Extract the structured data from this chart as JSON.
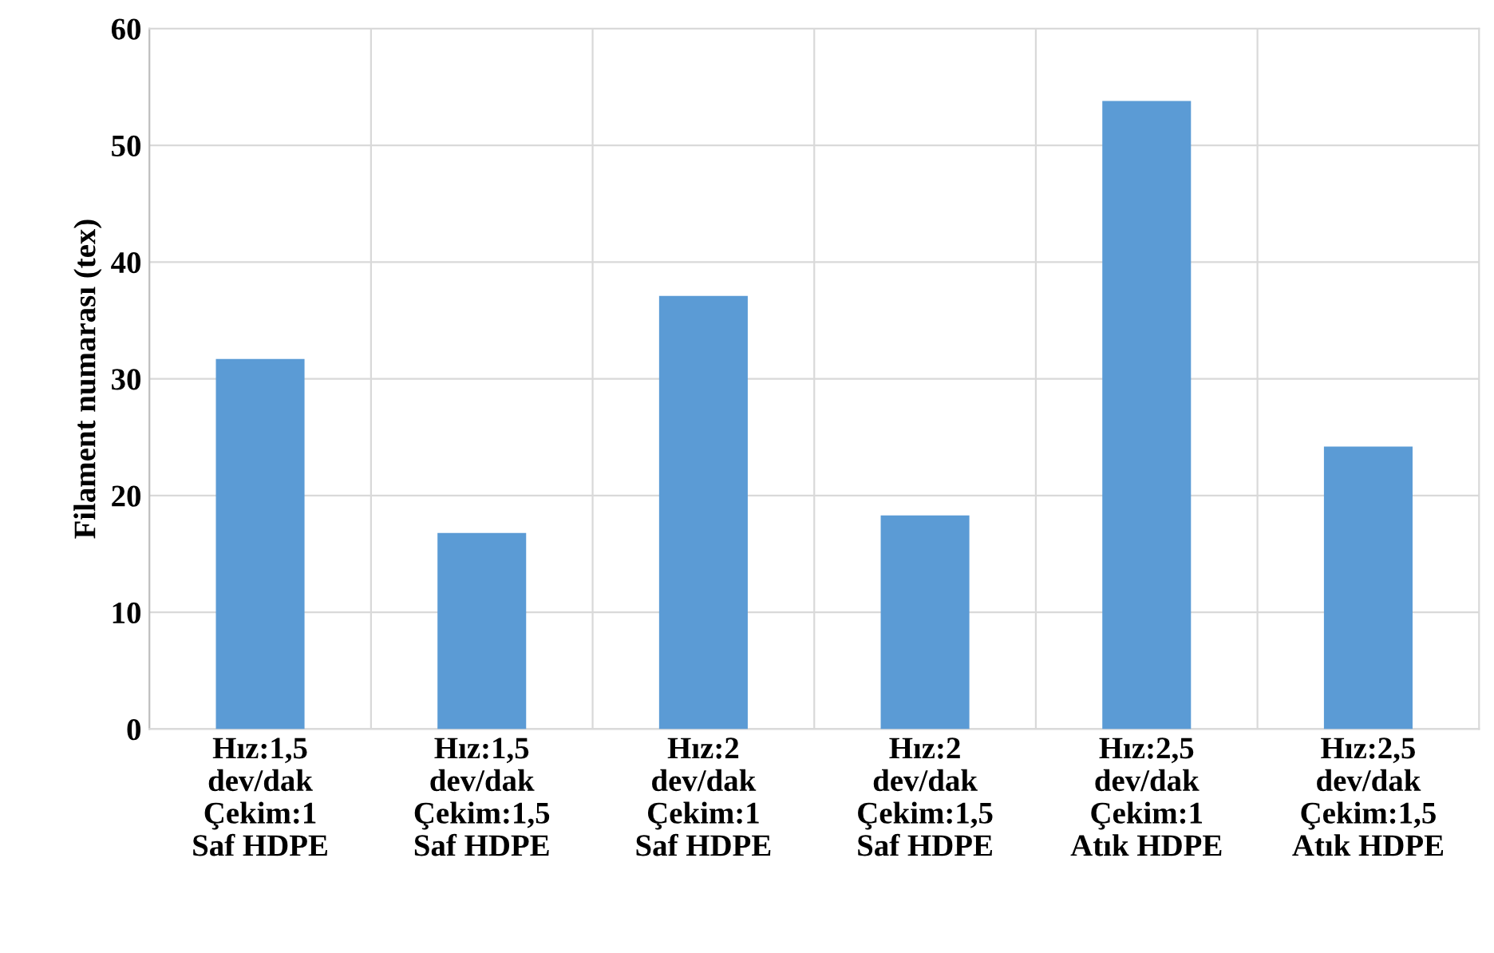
{
  "chart_data": {
    "type": "bar",
    "ylabel": "Filament numarası (tex)",
    "categories": [
      "Hız:1,5\ndev/dak\nÇekim:1\nSaf HDPE",
      "Hız:1,5\ndev/dak\nÇekim:1,5\nSaf HDPE",
      "Hız:2\ndev/dak\nÇekim:1\nSaf HDPE",
      "Hız:2\ndev/dak\nÇekim:1,5\nSaf HDPE",
      "Hız:2,5\ndev/dak\nÇekim:1\nAtık HDPE",
      "Hız:2,5\ndev/dak\nÇekim:1,5\nAtık HDPE"
    ],
    "values": [
      31.7,
      16.8,
      37.1,
      18.3,
      53.8,
      24.2
    ],
    "color": "#5b9bd5",
    "ylim": [
      0,
      60
    ],
    "yticks": [
      0,
      10,
      20,
      30,
      40,
      50,
      60
    ],
    "grid": true
  }
}
